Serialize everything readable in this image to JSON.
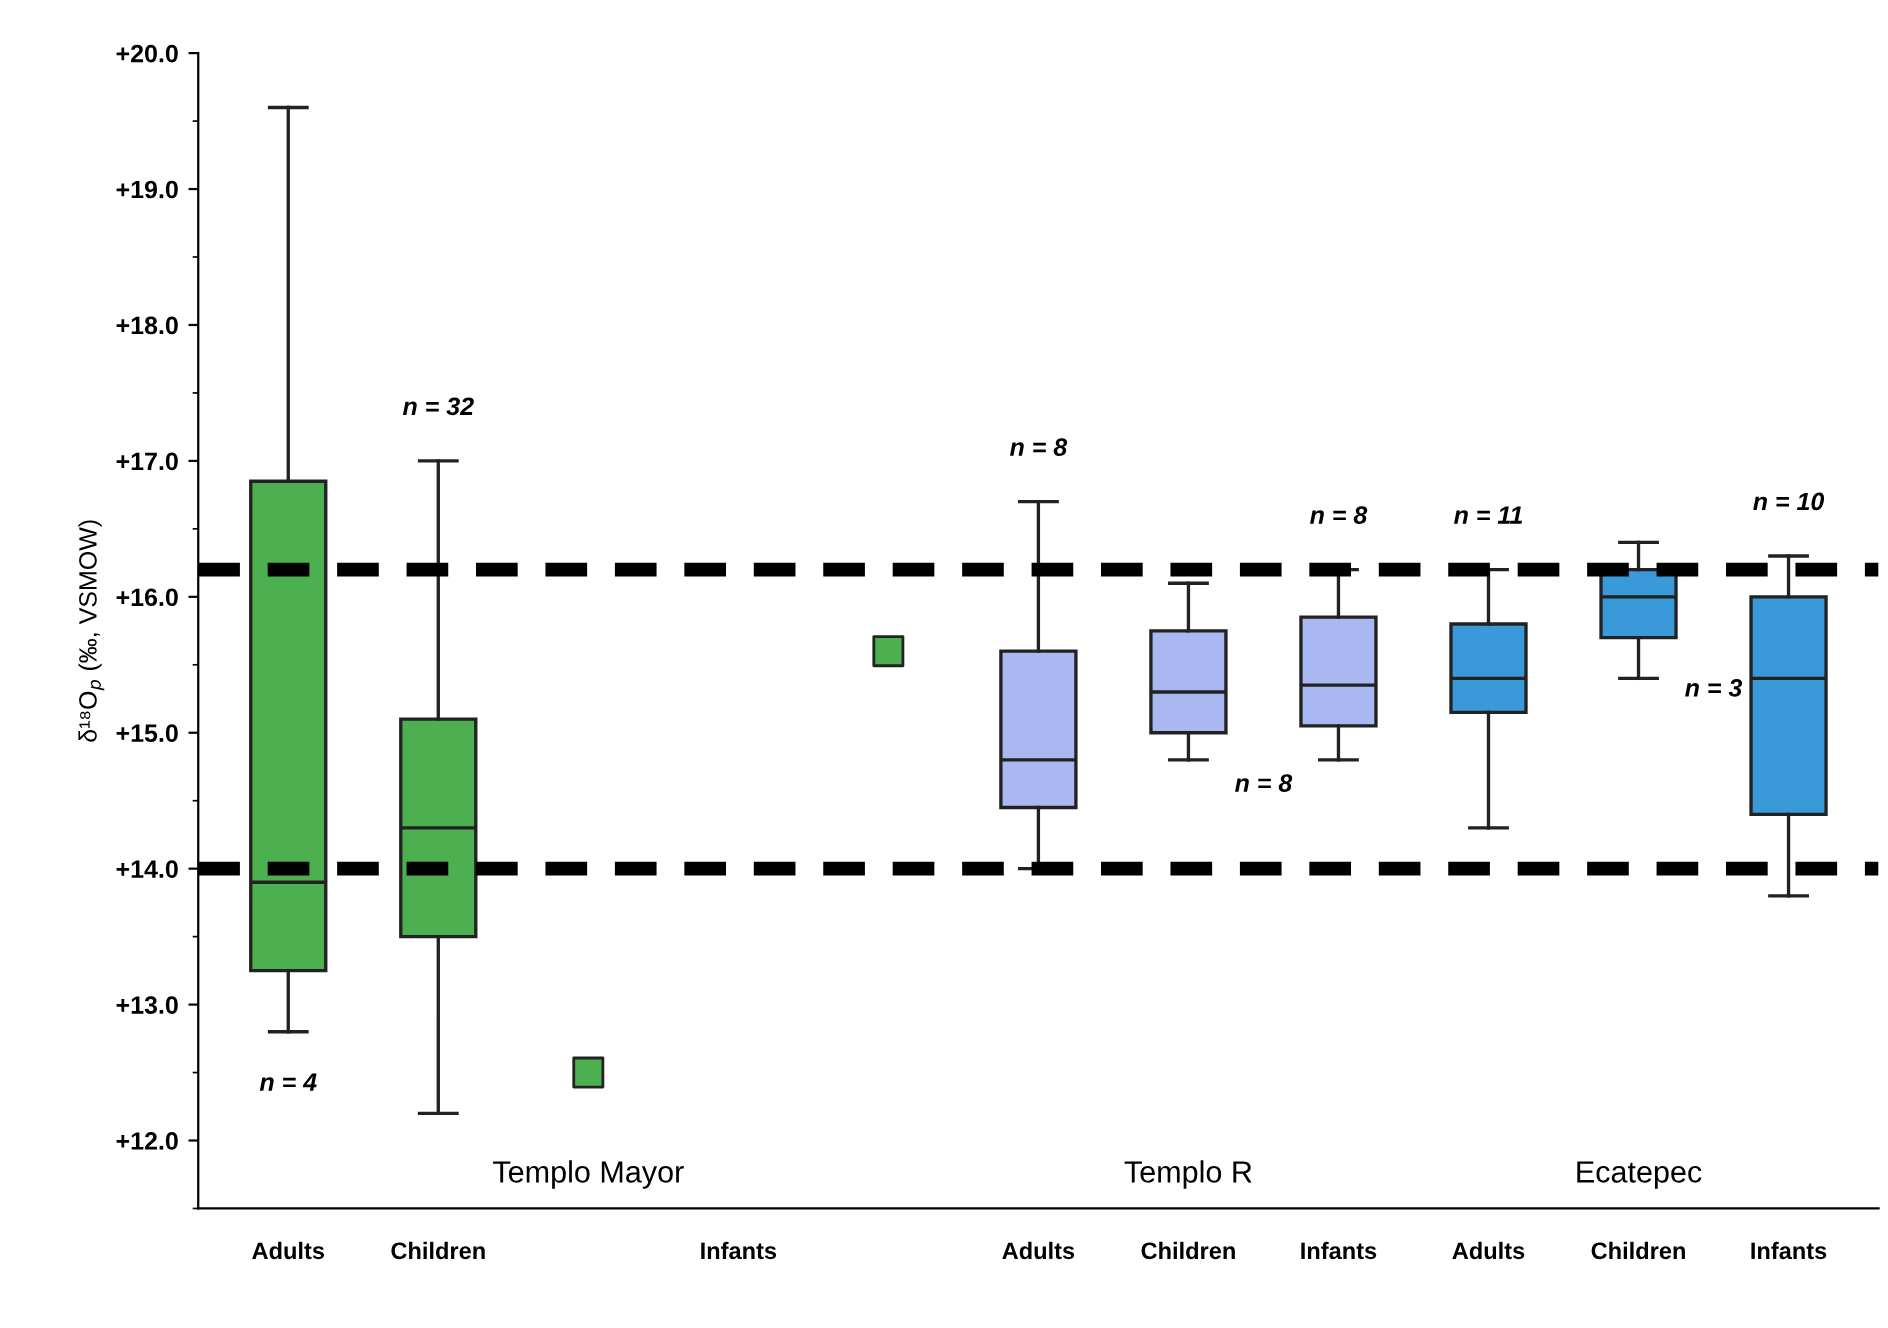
{
  "chart_data": {
    "type": "box",
    "ylabel": "δ¹⁸O$_{p}$ (‰, VSMOW)",
    "categories": [
      "Adults",
      "Children",
      null,
      "Infants",
      null,
      "Adults",
      "Children",
      "Infants",
      "Adults",
      "Children",
      "Infants"
    ],
    "boxes": [
      {
        "low": 12.8,
        "q1": 13.25,
        "median": 13.9,
        "q3": 16.85,
        "high": 19.6
      },
      {
        "low": 12.2,
        "q1": 13.5,
        "median": 14.3,
        "q3": 15.1,
        "high": 17.0
      },
      null,
      null,
      null,
      {
        "low": 14.0,
        "q1": 14.45,
        "median": 14.8,
        "q3": 15.6,
        "high": 16.7
      },
      {
        "low": 14.8,
        "q1": 15.0,
        "median": 15.3,
        "q3": 15.75,
        "high": 16.1
      },
      {
        "low": 14.8,
        "q1": 15.05,
        "median": 15.35,
        "q3": 15.85,
        "high": 16.2
      },
      {
        "low": 14.3,
        "q1": 15.15,
        "median": 15.4,
        "q3": 15.8,
        "high": 16.2
      },
      {
        "low": 15.4,
        "q1": 15.7,
        "median": 16.0,
        "q3": 16.2,
        "high": 16.4
      },
      {
        "low": 13.8,
        "q1": 14.4,
        "median": 15.4,
        "q3": 16.0,
        "high": 16.3
      }
    ],
    "colors": [
      "#4caf50",
      "#4caf50",
      null,
      null,
      null,
      "#a9b8f0",
      "#a9b8f0",
      "#a9b8f0",
      "#3a9ad9",
      "#3a9ad9",
      "#3a9ad9"
    ],
    "series": [
      {
        "type": "scatter",
        "color": "#4caf50",
        "marker": "square",
        "values": [
          null,
          null,
          12.5,
          null,
          15.6,
          null,
          null,
          null,
          null,
          null,
          null
        ]
      }
    ],
    "ylim": [
      11.5,
      20.0
    ],
    "yticks": [
      {
        "value": 12,
        "label": "+12.0"
      },
      {
        "value": 13,
        "label": "+13.0"
      },
      {
        "value": 14,
        "label": "+14.0"
      },
      {
        "value": 15,
        "label": "+15.0"
      },
      {
        "value": 16,
        "label": "+16.0"
      },
      {
        "value": 17,
        "label": "+17.0"
      },
      {
        "value": 18,
        "label": "+18.0"
      },
      {
        "value": 19,
        "label": "+19.0"
      },
      {
        "value": 20,
        "label": "+20.0"
      }
    ],
    "ref_lines": [
      {
        "axis": "y",
        "value": 16.2,
        "color": "#000000",
        "line_style": "dashed"
      },
      {
        "axis": "y",
        "value": 14.0,
        "color": "#000000",
        "line_style": "dashed"
      }
    ],
    "annotations": [
      "Templo Mayor",
      "Templo R",
      "Ecatepec",
      "n = 4",
      "n = 32",
      "n = 8",
      "n = 8",
      "n = 8",
      "n = 11",
      "n = 3",
      "n = 10"
    ],
    "grid": false,
    "legend": false
  }
}
